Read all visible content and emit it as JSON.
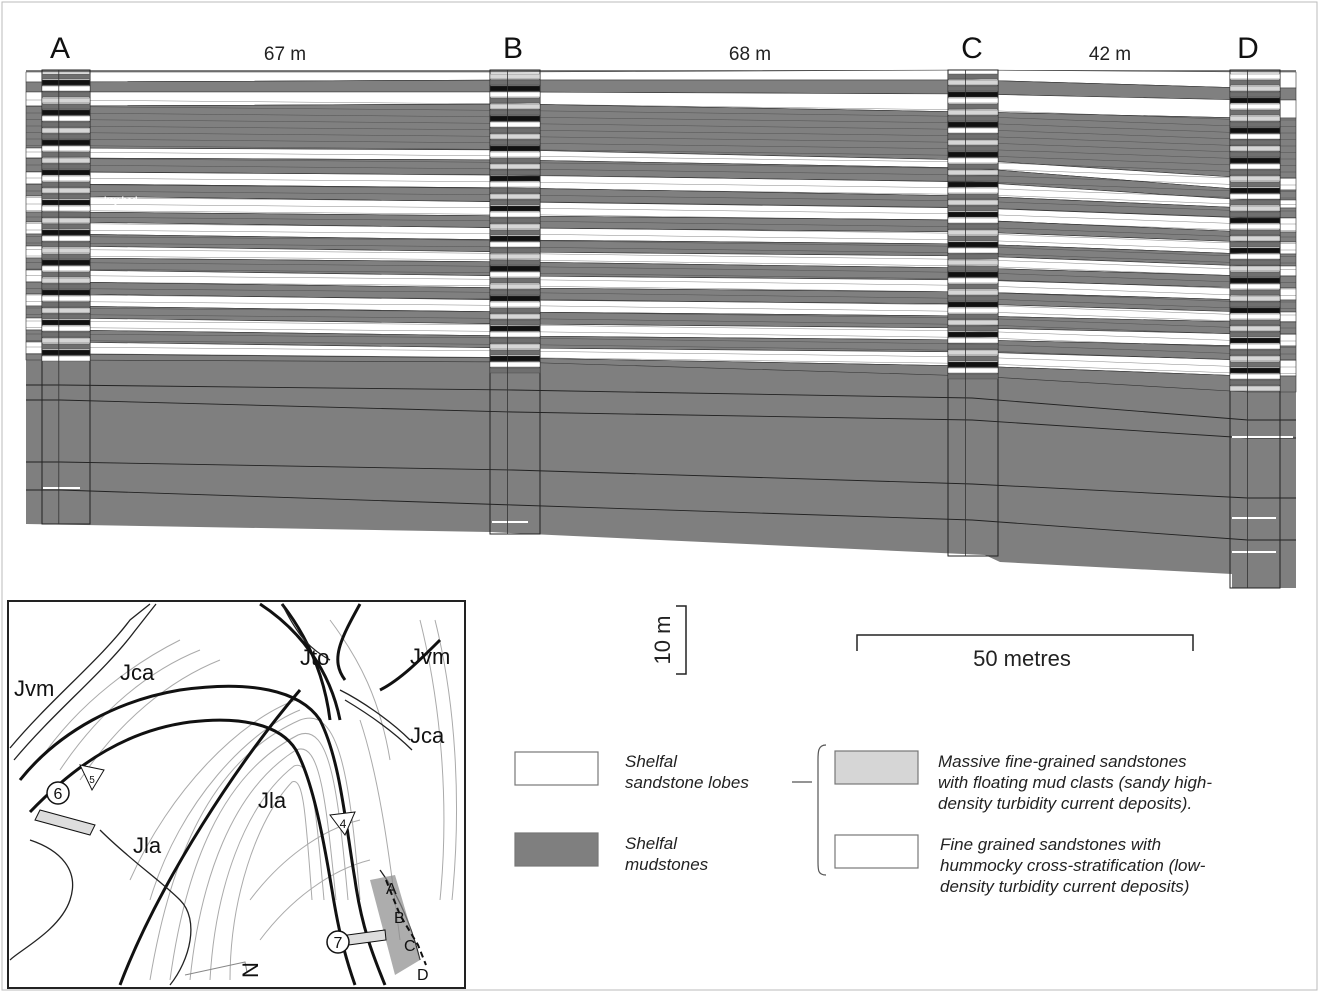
{
  "section": {
    "columns": [
      {
        "id": "col-a",
        "label": "A"
      },
      {
        "id": "col-b",
        "label": "B"
      },
      {
        "id": "col-c",
        "label": "C"
      },
      {
        "id": "col-d",
        "label": "D"
      }
    ],
    "distances": [
      "67 m",
      "68 m",
      "42 m"
    ],
    "key_bed_label": "key bed",
    "vertical_scale_label": "10 m",
    "horizontal_scale_label": "50 metres"
  },
  "map": {
    "formations": [
      "Jvm",
      "Jca",
      "Jto",
      "Jvm",
      "Jca",
      "Jla",
      "Jla"
    ],
    "locality_numbers": [
      "6",
      "5",
      "4",
      "7"
    ],
    "section_points": [
      "A",
      "B",
      "C",
      "D"
    ],
    "north_label": "N"
  },
  "legend": {
    "lobes_label_line1": "Shelfal",
    "lobes_label_line2": "sandstone lobes",
    "mud_label_line1": "Shelfal",
    "mud_label_line2": "mudstones",
    "massive_lines": [
      "Massive fine-grained sandstones",
      "with floating mud clasts (sandy high-",
      "density turbidity current deposits)."
    ],
    "hcs_lines": [
      "Fine grained sandstones with",
      "hummocky cross-stratification (low-",
      "density turbidity current deposits)"
    ]
  },
  "colors": {
    "mudstone": "#7f7f7f",
    "massive_sandstone": "#d6d6d6",
    "sandstone": "#ffffff",
    "line": "#222222"
  }
}
